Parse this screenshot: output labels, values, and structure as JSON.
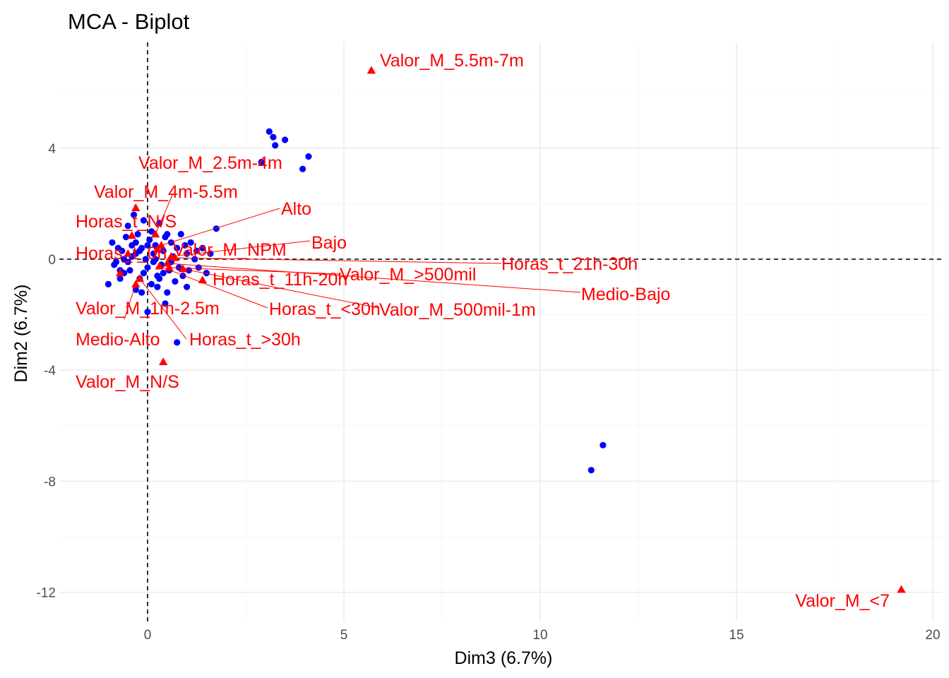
{
  "chart_data": {
    "type": "scatter",
    "title": "MCA - Biplot",
    "xlabel": "Dim3 (6.7%)",
    "ylabel": "Dim2 (6.7%)",
    "xlim": [
      -2.2,
      20.2
    ],
    "ylim": [
      -13.0,
      7.8
    ],
    "x_ticks": [
      0,
      5,
      10,
      15,
      20
    ],
    "y_ticks": [
      -12,
      -8,
      -4,
      0,
      4
    ],
    "grid": true,
    "reference_lines": {
      "x": 0,
      "y": 0,
      "style": "dashed"
    },
    "colors": {
      "individuals": "#0000ff",
      "variables": "#ff0000",
      "grid_major": "#ebebeb",
      "grid_minor": "#f5f5f5",
      "tick_text": "#4d4d4d"
    },
    "individuals": {
      "marker": "circle",
      "points": [
        [
          3.1,
          4.6
        ],
        [
          3.2,
          4.4
        ],
        [
          3.5,
          4.3
        ],
        [
          3.25,
          4.1
        ],
        [
          4.1,
          3.7
        ],
        [
          3.95,
          3.25
        ],
        [
          2.9,
          3.5
        ],
        [
          11.6,
          -6.7
        ],
        [
          11.3,
          -7.6
        ],
        [
          -1.0,
          -0.9
        ],
        [
          -0.85,
          -0.2
        ],
        [
          -0.75,
          0.4
        ],
        [
          -0.6,
          -0.5
        ],
        [
          -0.55,
          0.8
        ],
        [
          -0.5,
          1.2
        ],
        [
          -0.45,
          -0.4
        ],
        [
          -0.4,
          0.1
        ],
        [
          -0.35,
          1.6
        ],
        [
          -0.3,
          0.6
        ],
        [
          -0.3,
          -1.1
        ],
        [
          -0.25,
          0.9
        ],
        [
          -0.2,
          -0.7
        ],
        [
          -0.15,
          0.4
        ],
        [
          -0.1,
          1.4
        ],
        [
          -0.05,
          0.0
        ],
        [
          0.0,
          -0.3
        ],
        [
          0.05,
          0.7
        ],
        [
          0.1,
          1.0
        ],
        [
          0.1,
          -0.9
        ],
        [
          0.15,
          0.2
        ],
        [
          0.2,
          0.5
        ],
        [
          0.25,
          -0.6
        ],
        [
          0.3,
          1.3
        ],
        [
          0.35,
          -0.2
        ],
        [
          0.4,
          0.3
        ],
        [
          0.45,
          -1.6
        ],
        [
          0.5,
          0.9
        ],
        [
          0.55,
          -0.4
        ],
        [
          0.6,
          0.6
        ],
        [
          0.65,
          0.1
        ],
        [
          0.7,
          -0.8
        ],
        [
          0.75,
          0.4
        ],
        [
          0.8,
          -0.3
        ],
        [
          0.85,
          0.9
        ],
        [
          0.9,
          -0.6
        ],
        [
          1.0,
          0.2
        ],
        [
          1.05,
          -0.4
        ],
        [
          1.1,
          0.6
        ],
        [
          1.2,
          0.0
        ],
        [
          1.3,
          -0.3
        ],
        [
          1.4,
          0.4
        ],
        [
          1.5,
          -0.5
        ],
        [
          1.6,
          0.2
        ],
        [
          1.75,
          1.1
        ],
        [
          -0.8,
          -0.1
        ],
        [
          -0.7,
          -0.4
        ],
        [
          -0.65,
          0.3
        ],
        [
          -0.5,
          -0.1
        ],
        [
          -0.4,
          0.5
        ],
        [
          -0.2,
          0.3
        ],
        [
          0.2,
          0.0
        ],
        [
          0.3,
          -0.7
        ],
        [
          0.5,
          -1.2
        ],
        [
          -0.6,
          0.0
        ],
        [
          -0.1,
          -0.5
        ],
        [
          0.0,
          0.5
        ],
        [
          0.4,
          -0.5
        ],
        [
          0.45,
          0.8
        ],
        [
          -0.3,
          0.2
        ],
        [
          0.0,
          -1.9
        ],
        [
          0.75,
          -3.0
        ],
        [
          0.25,
          -1.0
        ],
        [
          -0.15,
          -1.2
        ],
        [
          0.6,
          -0.1
        ],
        [
          1.0,
          -1.0
        ],
        [
          0.95,
          0.5
        ],
        [
          1.25,
          0.3
        ],
        [
          -0.9,
          0.6
        ],
        [
          -0.7,
          -0.7
        ],
        [
          0.15,
          -0.1
        ]
      ]
    },
    "variables": [
      {
        "label": "Valor_M_5.5m-7m",
        "x": 5.7,
        "y": 6.8
      },
      {
        "label": "Valor_M_2.5m-4m",
        "x": 0.2,
        "y": 0.9
      },
      {
        "label": "Valor_M_4m-5.5m",
        "x": -0.3,
        "y": 1.85
      },
      {
        "label": "Alto",
        "x": 0.35,
        "y": 0.5
      },
      {
        "label": "Horas_t_N/S",
        "x": -0.4,
        "y": 0.85
      },
      {
        "label": "Bajo",
        "x": 0.6,
        "y": 0.1
      },
      {
        "label": "Valor_M_NPM",
        "x": 0.25,
        "y": 0.35
      },
      {
        "label": "Horas_t_0h",
        "x": -0.5,
        "y": 0.2
      },
      {
        "label": "Horas_t_21h-30h",
        "x": 0.7,
        "y": 0.05
      },
      {
        "label": "Valor_M_>500mil",
        "x": 0.55,
        "y": -0.3
      },
      {
        "label": "Medio-Bajo",
        "x": 0.5,
        "y": -0.15
      },
      {
        "label": "Horas_t_11h-20h",
        "x": 1.4,
        "y": -0.75
      },
      {
        "label": "Horas_t_<30h",
        "x": 0.3,
        "y": -0.25
      },
      {
        "label": "Valor_M_500mil-1m",
        "x": 0.9,
        "y": -0.35
      },
      {
        "label": "Valor_M_1m-2.5m",
        "x": -0.3,
        "y": -0.9
      },
      {
        "label": "Horas_t_>30h",
        "x": -0.2,
        "y": -0.7
      },
      {
        "label": "Medio-Alto",
        "x": -0.7,
        "y": -0.5
      },
      {
        "label": "Valor_M_N/S",
        "x": 0.4,
        "y": -3.7
      },
      {
        "label": "Valor_M_<7",
        "x": 19.2,
        "y": -11.9
      }
    ]
  }
}
